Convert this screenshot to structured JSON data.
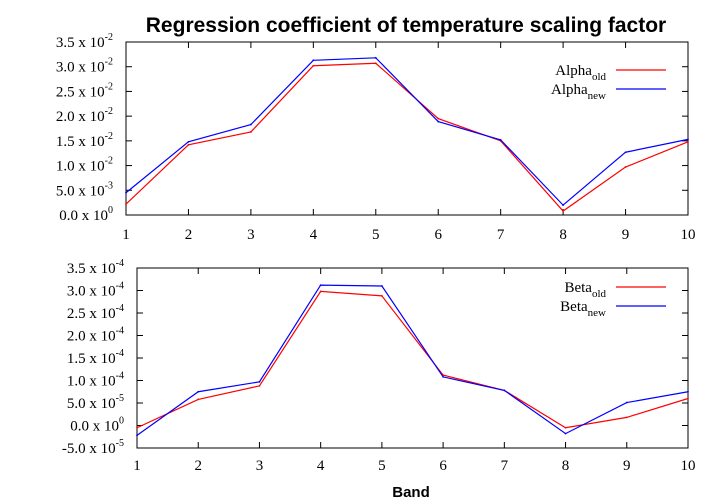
{
  "chart_data": [
    {
      "type": "line",
      "title": "Regression coefficient of temperature scaling factor",
      "x": [
        1,
        2,
        3,
        4,
        5,
        6,
        7,
        8,
        9,
        10
      ],
      "xlim": [
        1,
        10
      ],
      "ylim": [
        0,
        0.035
      ],
      "xticks": [
        "1",
        "2",
        "3",
        "4",
        "5",
        "6",
        "7",
        "8",
        "9",
        "10"
      ],
      "yticks": [
        {
          "value": 0.0,
          "mant": "0.0 x 10",
          "exp": "0"
        },
        {
          "value": 0.005,
          "mant": "5.0 x 10",
          "exp": "-3"
        },
        {
          "value": 0.01,
          "mant": "1.0 x 10",
          "exp": "-2"
        },
        {
          "value": 0.015,
          "mant": "1.5 x 10",
          "exp": "-2"
        },
        {
          "value": 0.02,
          "mant": "2.0 x 10",
          "exp": "-2"
        },
        {
          "value": 0.025,
          "mant": "2.5 x 10",
          "exp": "-2"
        },
        {
          "value": 0.03,
          "mant": "3.0 x 10",
          "exp": "-2"
        },
        {
          "value": 0.035,
          "mant": "3.5 x 10",
          "exp": "-2"
        }
      ],
      "legend_position": "top-right",
      "series": [
        {
          "name": "Alpha",
          "sub": "old",
          "color": "#ff0000",
          "values": [
            0.0022,
            0.0142,
            0.0168,
            0.0302,
            0.0307,
            0.0195,
            0.015,
            0.0008,
            0.0097,
            0.0148
          ]
        },
        {
          "name": "Alpha",
          "sub": "new",
          "color": "#0000ff",
          "values": [
            0.0045,
            0.0148,
            0.0183,
            0.0313,
            0.0318,
            0.0189,
            0.0152,
            0.002,
            0.0127,
            0.0153
          ]
        }
      ]
    },
    {
      "type": "line",
      "xlabel": "Band",
      "x": [
        1,
        2,
        3,
        4,
        5,
        6,
        7,
        8,
        9,
        10
      ],
      "xlim": [
        1,
        10
      ],
      "ylim": [
        -5e-05,
        0.00035
      ],
      "xticks": [
        "1",
        "2",
        "3",
        "4",
        "5",
        "6",
        "7",
        "8",
        "9",
        "10"
      ],
      "yticks": [
        {
          "value": -5e-05,
          "mant": "-5.0 x 10",
          "exp": "-5"
        },
        {
          "value": 0.0,
          "mant": "0.0 x 10",
          "exp": "0"
        },
        {
          "value": 5e-05,
          "mant": "5.0 x 10",
          "exp": "-5"
        },
        {
          "value": 0.0001,
          "mant": "1.0 x 10",
          "exp": "-4"
        },
        {
          "value": 0.00015,
          "mant": "1.5 x 10",
          "exp": "-4"
        },
        {
          "value": 0.0002,
          "mant": "2.0 x 10",
          "exp": "-4"
        },
        {
          "value": 0.00025,
          "mant": "2.5 x 10",
          "exp": "-4"
        },
        {
          "value": 0.0003,
          "mant": "3.0 x 10",
          "exp": "-4"
        },
        {
          "value": 0.00035,
          "mant": "3.5 x 10",
          "exp": "-4"
        }
      ],
      "legend_position": "top-right",
      "series": [
        {
          "name": "Beta",
          "sub": "old",
          "color": "#ff0000",
          "values": [
            -5e-06,
            5.8e-05,
            8.8e-05,
            0.000298,
            0.000288,
            0.000112,
            7.8e-05,
            -5e-06,
            1.8e-05,
            6e-05
          ]
        },
        {
          "name": "Beta",
          "sub": "new",
          "color": "#0000ff",
          "values": [
            -2.2e-05,
            7.5e-05,
            9.7e-05,
            0.000312,
            0.00031,
            0.000108,
            7.8e-05,
            -1.8e-05,
            5.1e-05,
            7.5e-05
          ]
        }
      ]
    }
  ]
}
